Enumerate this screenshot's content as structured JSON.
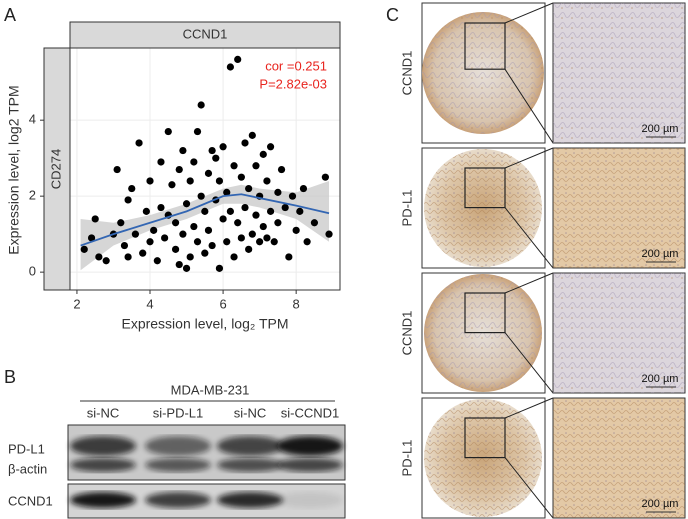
{
  "chart_data": {
    "type": "scatter",
    "facet_top": "CCND1",
    "facet_side": "CD274",
    "xlabel": "Expression level, log₂ TPM",
    "ylabel": "Expression level, log2 TPM",
    "annotations": [
      "cor =0.251",
      "P=2.82e-03"
    ],
    "annotation_color": "#e8251f",
    "color": "#000000",
    "grid": true,
    "xlim": [
      1.81,
      9.2
    ],
    "ylim": [
      -0.47,
      5.9
    ],
    "xticks": [
      2,
      4,
      6,
      8
    ],
    "yticks": [
      0,
      2,
      4
    ],
    "x": [
      2.2,
      2.4,
      2.5,
      2.6,
      2.8,
      3.0,
      3.1,
      3.2,
      3.3,
      3.4,
      3.4,
      3.5,
      3.6,
      3.7,
      3.8,
      3.9,
      4.0,
      4.0,
      4.1,
      4.2,
      4.3,
      4.3,
      4.4,
      4.5,
      4.5,
      4.6,
      4.7,
      4.7,
      4.8,
      4.8,
      4.9,
      4.9,
      5.0,
      5.0,
      5.1,
      5.1,
      5.2,
      5.2,
      5.3,
      5.3,
      5.4,
      5.4,
      5.5,
      5.5,
      5.6,
      5.6,
      5.7,
      5.7,
      5.8,
      5.8,
      5.9,
      5.9,
      6.0,
      6.0,
      6.1,
      6.1,
      6.2,
      6.2,
      6.3,
      6.3,
      6.4,
      6.4,
      6.5,
      6.5,
      6.6,
      6.6,
      6.7,
      6.7,
      6.8,
      6.8,
      6.9,
      6.9,
      7.0,
      7.0,
      7.1,
      7.1,
      7.2,
      7.2,
      7.3,
      7.3,
      7.4,
      7.5,
      7.5,
      7.6,
      7.7,
      7.8,
      7.9,
      8.0,
      8.1,
      8.2,
      8.3,
      8.5,
      8.8,
      8.9
    ],
    "values": [
      0.6,
      0.9,
      1.4,
      0.4,
      0.3,
      1.0,
      2.7,
      1.3,
      0.7,
      0.4,
      1.9,
      2.2,
      1.0,
      3.4,
      0.5,
      1.6,
      0.8,
      2.4,
      1.1,
      0.3,
      1.7,
      2.9,
      0.9,
      3.7,
      1.5,
      2.3,
      0.6,
      1.3,
      0.2,
      2.7,
      1.0,
      3.2,
      0.1,
      1.8,
      2.4,
      0.4,
      1.2,
      2.9,
      0.8,
      3.7,
      2.0,
      4.4,
      0.5,
      1.6,
      2.6,
      1.1,
      3.2,
      0.7,
      1.9,
      3.0,
      0.1,
      2.4,
      1.4,
      3.3,
      0.8,
      2.1,
      1.6,
      5.4,
      2.8,
      0.4,
      5.6,
      1.3,
      2.5,
      0.9,
      3.4,
      1.7,
      0.6,
      2.2,
      1.0,
      3.6,
      1.5,
      2.8,
      0.8,
      2.0,
      1.2,
      3.1,
      2.4,
      0.9,
      1.6,
      3.3,
      0.8,
      2.1,
      1.3,
      2.7,
      1.7,
      0.4,
      2.0,
      1.1,
      1.6,
      2.2,
      0.8,
      1.3,
      2.5,
      1.0
    ],
    "fit": {
      "color": "#3366b3",
      "band_color": "#c8c8c8",
      "x": [
        2.1,
        3,
        4,
        5,
        6,
        6.5,
        7,
        8,
        8.9
      ],
      "values": [
        0.7,
        1.0,
        1.3,
        1.6,
        2.0,
        2.05,
        1.95,
        1.75,
        1.55
      ],
      "lower": [
        0.05,
        0.7,
        1.1,
        1.4,
        1.8,
        1.8,
        1.7,
        1.4,
        0.8
      ],
      "upper": [
        1.4,
        1.3,
        1.5,
        1.8,
        2.2,
        2.3,
        2.2,
        2.1,
        2.4
      ]
    }
  },
  "panel_labels": [
    "A",
    "B",
    "C"
  ],
  "blot": {
    "title": "MDA-MB-231",
    "lanes": [
      "si-NC",
      "si-PD-L1",
      "si-NC",
      "si-CCND1"
    ],
    "rows": [
      "PD-L1",
      "β-actin",
      "CCND1"
    ]
  },
  "ihc": {
    "rows": [
      "CCND1",
      "PD-L1",
      "CCND1",
      "PD-L1"
    ],
    "scales": [
      "200 µm",
      "200 µm",
      "200 µm",
      "200 µm"
    ]
  }
}
